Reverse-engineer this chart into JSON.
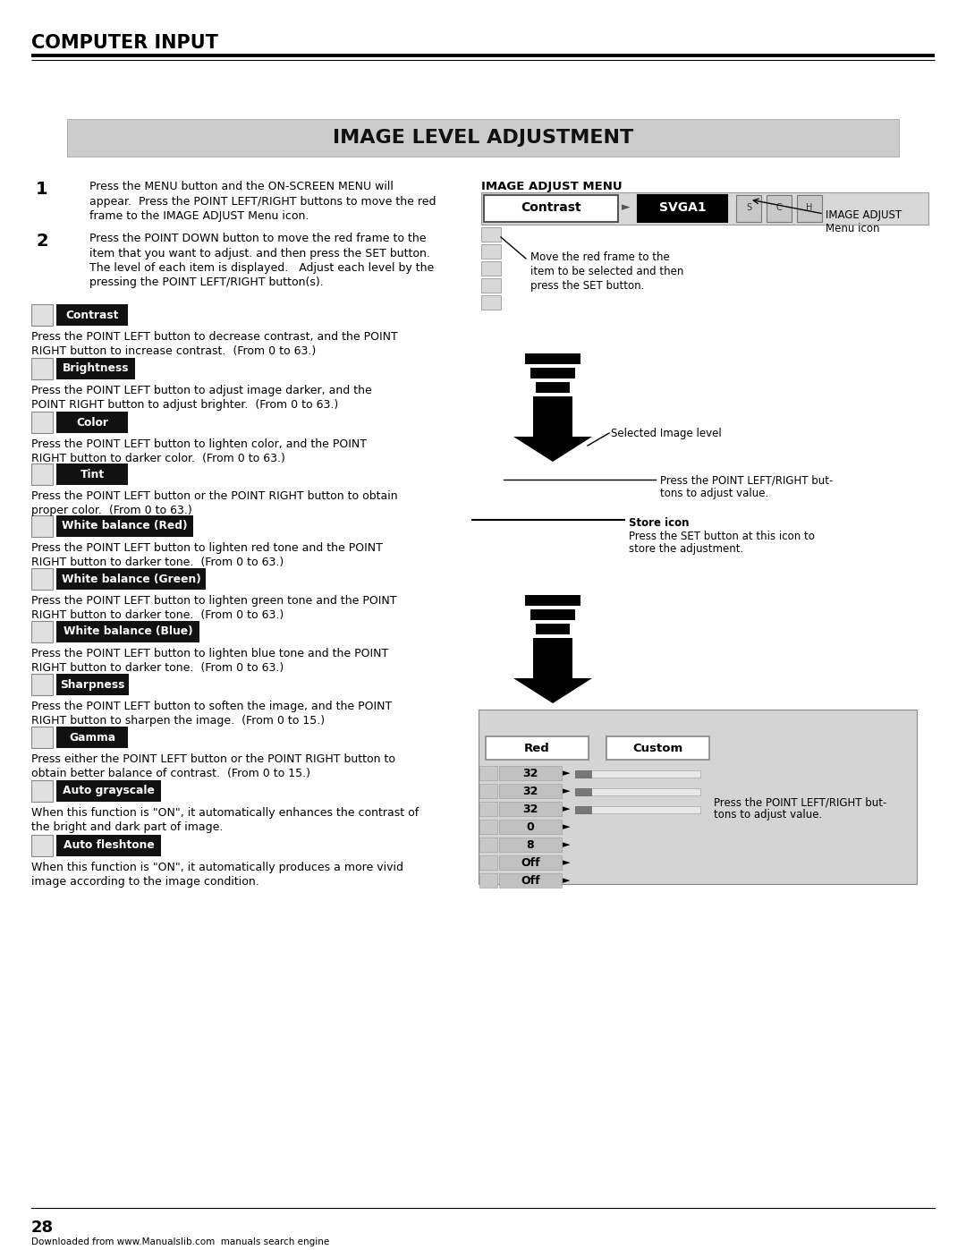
{
  "page_title": "COMPUTER INPUT",
  "section_title": "IMAGE LEVEL ADJUSTMENT",
  "background_color": "#ffffff",
  "page_number": "28",
  "footer_text": "Downloaded from www.Manualslib.com  manuals search engine",
  "menu_items": [
    {
      "label": "Contrast",
      "text1": "Press the POINT LEFT button to decrease contrast, and the POINT",
      "text2": "RIGHT button to increase contrast.  (From 0 to 63.)"
    },
    {
      "label": "Brightness",
      "text1": "Press the POINT LEFT button to adjust image darker, and the",
      "text2": "POINT RIGHT button to adjust brighter.  (From 0 to 63.)"
    },
    {
      "label": "Color",
      "text1": "Press the POINT LEFT button to lighten color, and the POINT",
      "text2": "RIGHT button to darker color.  (From 0 to 63.)"
    },
    {
      "label": "Tint",
      "text1": "Press the POINT LEFT button or the POINT RIGHT button to obtain",
      "text2": "proper color.  (From 0 to 63.)"
    },
    {
      "label": "White balance (Red)",
      "text1": "Press the POINT LEFT button to lighten red tone and the POINT",
      "text2": "RIGHT button to darker tone.  (From 0 to 63.)"
    },
    {
      "label": "White balance (Green)",
      "text1": "Press the POINT LEFT button to lighten green tone and the POINT",
      "text2": "RIGHT button to darker tone.  (From 0 to 63.)"
    },
    {
      "label": "White balance (Blue)",
      "text1": "Press the POINT LEFT button to lighten blue tone and the POINT",
      "text2": "RIGHT button to darker tone.  (From 0 to 63.)"
    },
    {
      "label": "Sharpness",
      "text1": "Press the POINT LEFT button to soften the image, and the POINT",
      "text2": "RIGHT button to sharpen the image.  (From 0 to 15.)"
    },
    {
      "label": "Gamma",
      "text1": "Press either the POINT LEFT button or the POINT RIGHT button to",
      "text2": "obtain better balance of contrast.  (From 0 to 15.)"
    },
    {
      "label": "Auto grayscale",
      "text1": "When this function is \"ON\", it automatically enhances the contrast of",
      "text2": "the bright and dark part of image."
    },
    {
      "label": "Auto fleshtone",
      "text1": "When this function is \"ON\", it automatically produces a more vivid",
      "text2": "image according to the image condition."
    }
  ]
}
